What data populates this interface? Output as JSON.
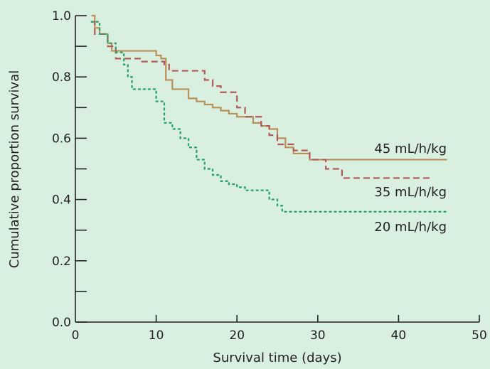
{
  "chart_data": {
    "type": "line",
    "subtype": "step (Kaplan-Meier survival curves)",
    "title": "",
    "xlabel": "Survival time (days)",
    "ylabel": "Cumulative proportion survival",
    "xlim": [
      0,
      50
    ],
    "ylim": [
      0,
      1.0
    ],
    "xticks": [
      0,
      10,
      20,
      30,
      40,
      50
    ],
    "yticks": [
      0.0,
      0.2,
      0.4,
      0.6,
      0.8,
      1.0
    ],
    "x_tick_labels": [
      "0",
      "10",
      "20",
      "30",
      "40",
      "50"
    ],
    "y_tick_labels": [
      "0.0",
      "0.2",
      "0.4",
      "0.6",
      "0.8",
      "1.0"
    ],
    "y_minor_ticks": [
      0.1,
      0.3,
      0.5,
      0.7,
      0.9
    ],
    "grid": false,
    "legend": "inline labels at right end of each curve",
    "series": [
      {
        "name": "45 mL/h/kg",
        "color": "#b8915a",
        "style": "solid",
        "x": [
          2,
          2.4,
          3,
          4,
          4.5,
          10,
          10.6,
          11.2,
          12,
          14,
          15,
          16,
          17,
          18,
          19,
          20,
          22,
          23,
          24,
          25,
          26,
          27,
          29,
          46
        ],
        "y": [
          1.0,
          0.96,
          0.94,
          0.91,
          0.885,
          0.87,
          0.86,
          0.79,
          0.76,
          0.73,
          0.72,
          0.71,
          0.7,
          0.69,
          0.68,
          0.67,
          0.65,
          0.64,
          0.63,
          0.6,
          0.57,
          0.55,
          0.53,
          0.53
        ]
      },
      {
        "name": "35 mL/h/kg",
        "color": "#b05a5a",
        "style": "dashed",
        "x": [
          2,
          2.4,
          4,
          5,
          8,
          11,
          11.6,
          16,
          17,
          18,
          20,
          21,
          23,
          24,
          25,
          27,
          29,
          31,
          33,
          44
        ],
        "y": [
          0.98,
          0.94,
          0.9,
          0.86,
          0.85,
          0.84,
          0.82,
          0.79,
          0.77,
          0.75,
          0.7,
          0.67,
          0.64,
          0.61,
          0.58,
          0.56,
          0.53,
          0.5,
          0.47,
          0.47
        ]
      },
      {
        "name": "20 mL/h/kg",
        "color": "#2ea56a",
        "style": "dotted",
        "x": [
          2,
          3,
          4,
          5,
          6,
          6.5,
          7,
          10,
          11,
          12,
          13,
          14,
          15,
          16,
          17,
          18,
          19,
          20,
          21,
          24,
          25,
          25.6,
          46
        ],
        "y": [
          0.98,
          0.94,
          0.91,
          0.88,
          0.84,
          0.8,
          0.76,
          0.72,
          0.65,
          0.63,
          0.6,
          0.57,
          0.53,
          0.5,
          0.48,
          0.46,
          0.45,
          0.44,
          0.43,
          0.4,
          0.38,
          0.36,
          0.36
        ]
      }
    ]
  }
}
